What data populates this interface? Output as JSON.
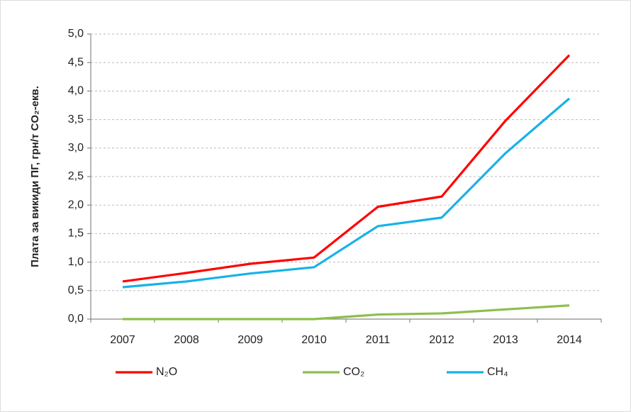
{
  "chart_data": {
    "type": "line",
    "ylabel": "Плата за викиди ПГ, грн/т CO₂-екв.",
    "categories": [
      "2007",
      "2008",
      "2009",
      "2010",
      "2011",
      "2012",
      "2013",
      "2014"
    ],
    "series": [
      {
        "name": "N₂O",
        "color": "#ff0000",
        "values": [
          0.66,
          0.81,
          0.97,
          1.08,
          1.97,
          2.15,
          3.48,
          4.63
        ]
      },
      {
        "name": "CO₂",
        "color": "#8dbf4a",
        "values": [
          0,
          0,
          0,
          0,
          0.08,
          0.1,
          0.17,
          0.24
        ]
      },
      {
        "name": "CH₄",
        "color": "#17b2e8",
        "values": [
          0.56,
          0.66,
          0.8,
          0.91,
          1.63,
          1.78,
          2.91,
          3.87
        ]
      }
    ],
    "ylim": [
      0,
      5
    ],
    "yticks": [
      {
        "value": 0,
        "label": "0,0"
      },
      {
        "value": 0.5,
        "label": "0,5"
      },
      {
        "value": 1,
        "label": "1,0"
      },
      {
        "value": 1.5,
        "label": "1,5"
      },
      {
        "value": 2,
        "label": "2,0"
      },
      {
        "value": 2.5,
        "label": "2,5"
      },
      {
        "value": 3,
        "label": "3,0"
      },
      {
        "value": 3.5,
        "label": "3,5"
      },
      {
        "value": 4,
        "label": "4,0"
      },
      {
        "value": 4.5,
        "label": "4,5"
      },
      {
        "value": 5,
        "label": "5,0"
      }
    ],
    "grid": true
  }
}
